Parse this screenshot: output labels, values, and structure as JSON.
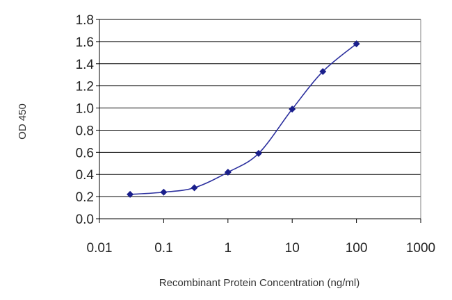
{
  "chart_data": {
    "type": "scatter",
    "title": "",
    "xlabel": "Recombinant Protein Concentration (ng/ml)",
    "ylabel": "OD 450",
    "x_scale": "log",
    "xlim": [
      0.01,
      1000
    ],
    "ylim": [
      0.0,
      1.8
    ],
    "x_ticks": [
      "0.01",
      "0.1",
      "1",
      "10",
      "100",
      "1000"
    ],
    "y_ticks": [
      "0.0",
      "0.2",
      "0.4",
      "0.6",
      "0.8",
      "1.0",
      "1.2",
      "1.4",
      "1.6",
      "1.8"
    ],
    "grid": "horizontal",
    "legend": "none",
    "series": [
      {
        "x": [
          0.03,
          0.1,
          0.3,
          1,
          3,
          10,
          30,
          100
        ],
        "y": [
          0.22,
          0.24,
          0.28,
          0.42,
          0.59,
          0.99,
          1.33,
          1.58
        ],
        "line": "smooth",
        "marker": "diamond"
      }
    ],
    "colors": {
      "line": "#2b2f9e",
      "marker": "#1a1f8c",
      "grid": "#000000",
      "axis": "#000000"
    }
  }
}
